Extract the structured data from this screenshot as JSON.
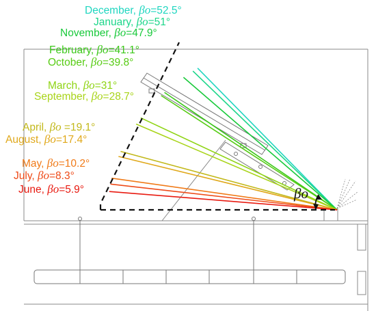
{
  "symbol": "βo",
  "angle_marker": "βo",
  "months": [
    {
      "month": "December",
      "beta_text": "=52.5°",
      "beta_deg": 52.5,
      "color": "#1fd6c0"
    },
    {
      "month": "January",
      "beta_text": "=51°",
      "beta_deg": 51,
      "color": "#1cd68a"
    },
    {
      "month": "November",
      "beta_text": "=47.9°",
      "beta_deg": 47.9,
      "color": "#18c93a"
    },
    {
      "month": "February",
      "beta_text": "=41.1°",
      "beta_deg": 41.1,
      "color": "#3cc81a"
    },
    {
      "month": "October",
      "beta_text": "=39.8°",
      "beta_deg": 39.8,
      "color": "#57cc14"
    },
    {
      "month": "March",
      "beta_text": "=31°",
      "beta_deg": 31,
      "color": "#8fd414"
    },
    {
      "month": "September",
      "beta_text": "=28.7°",
      "beta_deg": 28.7,
      "color": "#a9d41a"
    },
    {
      "month": "April",
      "beta_text": " =19.1°",
      "beta_deg": 19.1,
      "color": "#c2b81a"
    },
    {
      "month": "August",
      "beta_text": "=17.4°",
      "beta_deg": 17.4,
      "color": "#e0a81a"
    },
    {
      "month": "May",
      "beta_text": "=10.2°",
      "beta_deg": 10.2,
      "color": "#f07a18"
    },
    {
      "month": "July",
      "beta_text": "=8.3°",
      "beta_deg": 8.3,
      "color": "#ee4a18"
    },
    {
      "month": "June",
      "beta_text": "=5.9°",
      "beta_deg": 5.9,
      "color": "#e81a10"
    }
  ]
}
